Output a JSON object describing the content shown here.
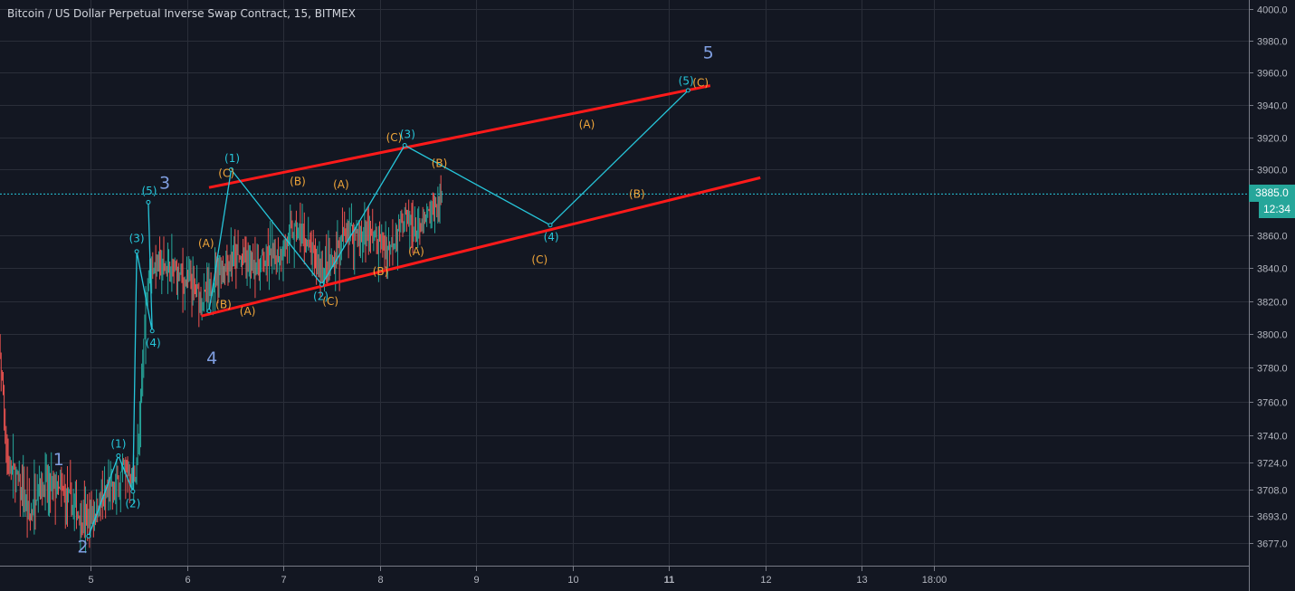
{
  "header": {
    "title": "Bitcoin / US Dollar Perpetual Inverse Swap Contract, 15, BITMEX"
  },
  "price_tag": {
    "price": "3885.0",
    "countdown": "12:34"
  },
  "colors": {
    "background": "#131722",
    "grid": "#2a2e39",
    "up": "#26a69a",
    "down": "#ef5350",
    "wave": "#26c6da",
    "channel": "#ff1a1a",
    "minor_label": "#f0a63a",
    "major_label": "#7f9ee0"
  },
  "chart_data": {
    "type": "candlestick",
    "title": "Bitcoin / US Dollar Perpetual Inverse Swap Contract, 15, BITMEX",
    "interval": "15",
    "y_scale": "log",
    "ylim": [
      3668,
      4003
    ],
    "xlim": [
      4.0,
      14.3
    ],
    "grid": true,
    "last_price": 3885.0,
    "y_ticks": [
      "4000.0",
      "3980.0",
      "3960.0",
      "3940.0",
      "3920.0",
      "3900.0",
      "3860.0",
      "3840.0",
      "3820.0",
      "3800.0",
      "3780.0",
      "3760.0",
      "3740.0",
      "3724.0",
      "3708.0",
      "3693.0",
      "3677.0"
    ],
    "y_tick_values": [
      4000,
      3980,
      3960,
      3940,
      3920,
      3900,
      3860,
      3840,
      3820,
      3800,
      3780,
      3760,
      3740,
      3724,
      3708,
      3693,
      3677
    ],
    "x_ticks": [
      {
        "day": 5,
        "label": "5"
      },
      {
        "day": 6,
        "label": "6"
      },
      {
        "day": 7,
        "label": "7"
      },
      {
        "day": 8,
        "label": "8"
      },
      {
        "day": 9,
        "label": "9"
      },
      {
        "day": 10,
        "label": "10"
      },
      {
        "day": 11,
        "label": "11",
        "bold": true
      },
      {
        "day": 12,
        "label": "12"
      },
      {
        "day": 13,
        "label": "13"
      },
      {
        "day": 13.75,
        "label": "18:00"
      }
    ],
    "price_path": [
      [
        4.0,
        3800
      ],
      [
        4.06,
        3790
      ],
      [
        4.1,
        3760
      ],
      [
        4.13,
        3725
      ],
      [
        4.25,
        3712
      ],
      [
        4.37,
        3690
      ],
      [
        4.45,
        3712
      ],
      [
        4.6,
        3710
      ],
      [
        4.8,
        3700
      ],
      [
        4.95,
        3690
      ],
      [
        5.1,
        3700
      ],
      [
        5.25,
        3708
      ],
      [
        5.35,
        3722
      ],
      [
        5.45,
        3712
      ],
      [
        5.5,
        3735
      ],
      [
        5.56,
        3805
      ],
      [
        5.6,
        3840
      ],
      [
        5.7,
        3842
      ],
      [
        5.85,
        3838
      ],
      [
        6.05,
        3828
      ],
      [
        6.2,
        3820
      ],
      [
        6.3,
        3838
      ],
      [
        6.45,
        3846
      ],
      [
        6.7,
        3843
      ],
      [
        6.95,
        3848
      ],
      [
        7.1,
        3862
      ],
      [
        7.2,
        3858
      ],
      [
        7.4,
        3838
      ],
      [
        7.5,
        3840
      ],
      [
        7.65,
        3862
      ],
      [
        7.9,
        3860
      ],
      [
        8.1,
        3852
      ],
      [
        8.25,
        3872
      ],
      [
        8.4,
        3860
      ],
      [
        8.55,
        3875
      ],
      [
        8.65,
        3884
      ]
    ],
    "wave_lines": [
      {
        "points": [
          [
            4.98,
            3681
          ],
          [
            5.29,
            3728
          ],
          [
            5.44,
            3707
          ],
          [
            5.48,
            3850
          ],
          [
            5.64,
            3802
          ],
          [
            5.6,
            3880
          ]
        ]
      },
      {
        "points": [
          [
            6.23,
            3814
          ],
          [
            6.46,
            3900
          ],
          [
            7.4,
            3830
          ],
          [
            8.26,
            3915
          ],
          [
            9.77,
            3866
          ],
          [
            11.2,
            3949
          ]
        ]
      }
    ],
    "channel_lines": [
      {
        "from": [
          6.23,
          3889
        ],
        "to": [
          11.43,
          3952
        ]
      },
      {
        "from": [
          6.15,
          3811
        ],
        "to": [
          11.95,
          3895
        ]
      }
    ],
    "labels": [
      {
        "text": "1",
        "day": 4.67,
        "price": 3726,
        "kind": "major"
      },
      {
        "text": "2",
        "day": 4.92,
        "price": 3675,
        "kind": "major"
      },
      {
        "text": "3",
        "day": 5.77,
        "price": 3892,
        "kind": "major"
      },
      {
        "text": "4",
        "day": 6.26,
        "price": 3786,
        "kind": "major"
      },
      {
        "text": "5",
        "day": 11.41,
        "price": 3973,
        "kind": "major"
      },
      {
        "text": "(1)",
        "day": 5.29,
        "price": 3735,
        "kind": "wave"
      },
      {
        "text": "(2)",
        "day": 5.44,
        "price": 3700,
        "kind": "wave"
      },
      {
        "text": "(3)",
        "day": 5.48,
        "price": 3858,
        "kind": "wave"
      },
      {
        "text": "(4)",
        "day": 5.65,
        "price": 3795,
        "kind": "wave"
      },
      {
        "text": "(5)",
        "day": 5.61,
        "price": 3887,
        "kind": "wave"
      },
      {
        "text": "(1)",
        "day": 6.47,
        "price": 3907,
        "kind": "wave"
      },
      {
        "text": "(2)",
        "day": 7.39,
        "price": 3823,
        "kind": "wave"
      },
      {
        "text": "(3)",
        "day": 8.29,
        "price": 3922,
        "kind": "wave"
      },
      {
        "text": "(4)",
        "day": 9.78,
        "price": 3859,
        "kind": "wave"
      },
      {
        "text": "(5)",
        "day": 11.18,
        "price": 3955,
        "kind": "wave"
      },
      {
        "text": "(A)",
        "day": 6.2,
        "price": 3855,
        "kind": "minor"
      },
      {
        "text": "(B)",
        "day": 6.38,
        "price": 3818,
        "kind": "minor"
      },
      {
        "text": "(C)",
        "day": 6.41,
        "price": 3898,
        "kind": "minor"
      },
      {
        "text": "(A)",
        "day": 6.63,
        "price": 3814,
        "kind": "minor"
      },
      {
        "text": "(B)",
        "day": 7.15,
        "price": 3893,
        "kind": "minor"
      },
      {
        "text": "(A)",
        "day": 7.6,
        "price": 3891,
        "kind": "minor"
      },
      {
        "text": "(C)",
        "day": 7.49,
        "price": 3820,
        "kind": "minor"
      },
      {
        "text": "(B)",
        "day": 8.01,
        "price": 3838,
        "kind": "minor"
      },
      {
        "text": "(C)",
        "day": 8.15,
        "price": 3920,
        "kind": "minor"
      },
      {
        "text": "(B)",
        "day": 8.62,
        "price": 3904,
        "kind": "minor"
      },
      {
        "text": "(A)",
        "day": 8.38,
        "price": 3850,
        "kind": "minor"
      },
      {
        "text": "(A)",
        "day": 10.15,
        "price": 3928,
        "kind": "minor"
      },
      {
        "text": "(B)",
        "day": 10.67,
        "price": 3885,
        "kind": "minor"
      },
      {
        "text": "(C)",
        "day": 9.66,
        "price": 3845,
        "kind": "minor"
      },
      {
        "text": "(C)",
        "day": 11.33,
        "price": 3954,
        "kind": "minor"
      }
    ]
  }
}
